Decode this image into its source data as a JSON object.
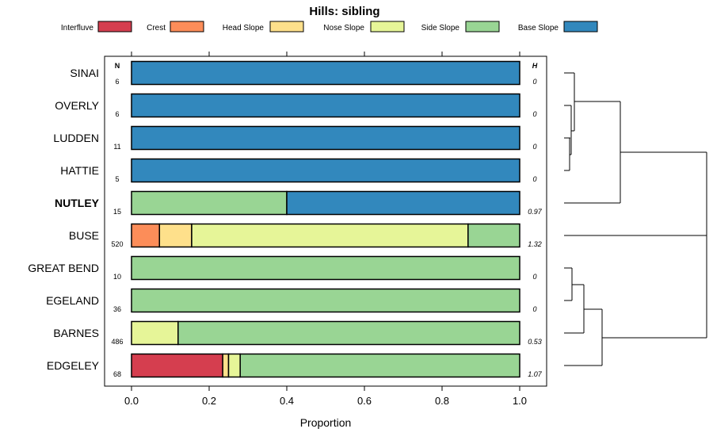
{
  "chart_data": {
    "type": "bar",
    "orientation": "horizontal",
    "stacked": true,
    "title": "Hills: sibling",
    "xlabel": "Proportion",
    "ylabel": "",
    "xlim": [
      0,
      1
    ],
    "xticks": [
      "0.0",
      "0.2",
      "0.4",
      "0.6",
      "0.8",
      "1.0"
    ],
    "n_label": "N",
    "h_label": "H",
    "legend_position": "top",
    "legend": [
      {
        "name": "Interfluve",
        "color": "#d53e4f"
      },
      {
        "name": "Crest",
        "color": "#fc8d59"
      },
      {
        "name": "Head Slope",
        "color": "#fee08b"
      },
      {
        "name": "Nose Slope",
        "color": "#e6f598"
      },
      {
        "name": "Side Slope",
        "color": "#99d594"
      },
      {
        "name": "Base Slope",
        "color": "#3288bd"
      }
    ],
    "categories": [
      "SINAI",
      "OVERLY",
      "LUDDEN",
      "HATTIE",
      "NUTLEY",
      "BUSE",
      "GREAT BEND",
      "EGELAND",
      "BARNES",
      "EDGELEY"
    ],
    "highlight": "NUTLEY",
    "n": [
      "6",
      "6",
      "11",
      "5",
      "15",
      "520",
      "10",
      "36",
      "486",
      "68"
    ],
    "h": [
      "0",
      "0",
      "0",
      "0",
      "0.97",
      "1.32",
      "0",
      "0",
      "0.53",
      "1.07"
    ],
    "series": [
      {
        "name": "Interfluve",
        "values": [
          0,
          0,
          0,
          0,
          0,
          0,
          0,
          0,
          0,
          0.235
        ]
      },
      {
        "name": "Crest",
        "values": [
          0,
          0,
          0,
          0,
          0,
          0.072,
          0,
          0,
          0,
          0
        ]
      },
      {
        "name": "Head Slope",
        "values": [
          0,
          0,
          0,
          0,
          0,
          0.083,
          0,
          0,
          0,
          0.015
        ]
      },
      {
        "name": "Nose Slope",
        "values": [
          0,
          0,
          0,
          0,
          0,
          0.712,
          0,
          0,
          0.12,
          0.03
        ]
      },
      {
        "name": "Side Slope",
        "values": [
          0,
          0,
          0,
          0,
          0.4,
          0.133,
          1,
          1,
          0.88,
          0.72
        ]
      },
      {
        "name": "Base Slope",
        "values": [
          1,
          1,
          1,
          1,
          0.6,
          0,
          0,
          0,
          0,
          0
        ]
      }
    ],
    "dendrogram": {
      "groups": [
        "SINAI-OVERLY-LUDDEN-HATTIE-NUTLEY",
        "BUSE",
        "GREAT BEND-EGELAND-BARNES-EDGELEY"
      ]
    }
  }
}
